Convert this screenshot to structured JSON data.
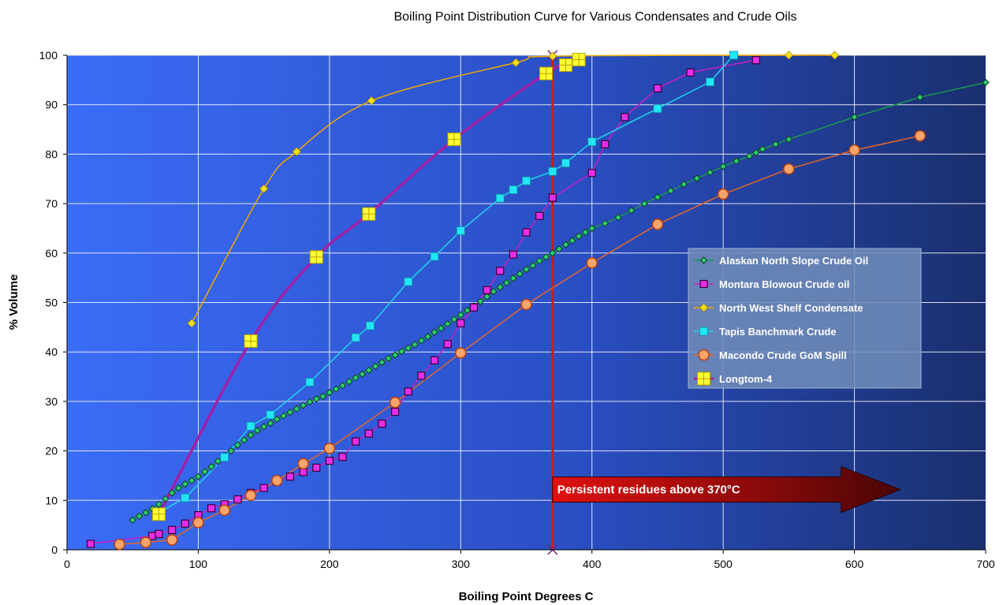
{
  "chart_data": {
    "type": "line",
    "title": "Boiling Point Distribution Curve for Various Condensates and Crude Oils",
    "xlabel": "Boiling Point Degrees C",
    "ylabel": "% Volume",
    "xlim": [
      0,
      700
    ],
    "ylim": [
      0,
      100
    ],
    "x_ticks": [
      0,
      100,
      200,
      300,
      400,
      500,
      600,
      700
    ],
    "y_ticks": [
      0,
      10,
      20,
      30,
      40,
      50,
      60,
      70,
      80,
      90,
      100
    ],
    "grid": true,
    "legend_position": "right-middle",
    "background_gradient": [
      "#3b6cf7",
      "#1a2f6e"
    ],
    "series": [
      {
        "name": "Alaskan North Slope Crude Oil",
        "color": "#1a9850",
        "marker": "diamond-green",
        "smooth": false,
        "points": [
          [
            50,
            6
          ],
          [
            55,
            6.8
          ],
          [
            60,
            7.5
          ],
          [
            65,
            8.3
          ],
          [
            70,
            9.2
          ],
          [
            75,
            10.3
          ],
          [
            80,
            11.5
          ],
          [
            85,
            12.5
          ],
          [
            90,
            13.3
          ],
          [
            95,
            14
          ],
          [
            100,
            14.8
          ],
          [
            105,
            15.8
          ],
          [
            110,
            16.8
          ],
          [
            115,
            17.9
          ],
          [
            120,
            19
          ],
          [
            125,
            20
          ],
          [
            130,
            21.2
          ],
          [
            135,
            22.2
          ],
          [
            140,
            23.2
          ],
          [
            145,
            24.1
          ],
          [
            150,
            24.9
          ],
          [
            155,
            25.6
          ],
          [
            160,
            26.4
          ],
          [
            165,
            27.1
          ],
          [
            170,
            27.8
          ],
          [
            175,
            28.5
          ],
          [
            180,
            29.2
          ],
          [
            185,
            29.9
          ],
          [
            190,
            30.5
          ],
          [
            195,
            31
          ],
          [
            200,
            31.8
          ],
          [
            205,
            32.5
          ],
          [
            210,
            33.2
          ],
          [
            215,
            34
          ],
          [
            220,
            34.8
          ],
          [
            225,
            35.5
          ],
          [
            230,
            36.3
          ],
          [
            235,
            37.1
          ],
          [
            240,
            37.9
          ],
          [
            245,
            38.7
          ],
          [
            250,
            39.4
          ],
          [
            255,
            40.1
          ],
          [
            260,
            40.8
          ],
          [
            265,
            41.5
          ],
          [
            270,
            42.3
          ],
          [
            275,
            43.1
          ],
          [
            280,
            44
          ],
          [
            285,
            44.8
          ],
          [
            290,
            45.7
          ],
          [
            295,
            46.6
          ],
          [
            300,
            47.5
          ],
          [
            305,
            48.4
          ],
          [
            310,
            49.3
          ],
          [
            315,
            50.2
          ],
          [
            320,
            51.2
          ],
          [
            325,
            52.2
          ],
          [
            330,
            53.1
          ],
          [
            335,
            54
          ],
          [
            340,
            54.9
          ],
          [
            345,
            55.8
          ],
          [
            350,
            56.7
          ],
          [
            355,
            57.5
          ],
          [
            360,
            58.4
          ],
          [
            365,
            59.2
          ],
          [
            370,
            60
          ],
          [
            375,
            60.8
          ],
          [
            380,
            61.7
          ],
          [
            385,
            62.5
          ],
          [
            390,
            63.4
          ],
          [
            395,
            64.2
          ],
          [
            400,
            65
          ],
          [
            410,
            66
          ],
          [
            420,
            67.2
          ],
          [
            430,
            68.6
          ],
          [
            440,
            70
          ],
          [
            450,
            71.3
          ],
          [
            460,
            72.6
          ],
          [
            470,
            73.9
          ],
          [
            480,
            75.1
          ],
          [
            490,
            76.3
          ],
          [
            500,
            77.5
          ],
          [
            510,
            78.6
          ],
          [
            520,
            79.6
          ],
          [
            525,
            80.3
          ],
          [
            530,
            81
          ],
          [
            540,
            82
          ],
          [
            550,
            83
          ],
          [
            600,
            87.5
          ],
          [
            650,
            91.5
          ],
          [
            700,
            94.5
          ]
        ]
      },
      {
        "name": "Montara Blowout Crude oil",
        "color": "#c81ec8",
        "marker": "square-magenta",
        "smooth": false,
        "points": [
          [
            18,
            1.2
          ],
          [
            65,
            2.8
          ],
          [
            70,
            3.2
          ],
          [
            80,
            4
          ],
          [
            90,
            5.3
          ],
          [
            100,
            7
          ],
          [
            110,
            8.4
          ],
          [
            120,
            9.2
          ],
          [
            130,
            10.2
          ],
          [
            140,
            11.5
          ],
          [
            150,
            12.5
          ],
          [
            160,
            13.8
          ],
          [
            170,
            14.8
          ],
          [
            180,
            15.7
          ],
          [
            190,
            16.6
          ],
          [
            200,
            18
          ],
          [
            210,
            18.8
          ],
          [
            220,
            21.9
          ],
          [
            230,
            23.5
          ],
          [
            240,
            25.5
          ],
          [
            250,
            27.9
          ],
          [
            260,
            32
          ],
          [
            270,
            35.2
          ],
          [
            280,
            38.3
          ],
          [
            290,
            41.6
          ],
          [
            300,
            45.8
          ],
          [
            310,
            49
          ],
          [
            320,
            52.5
          ],
          [
            330,
            56.4
          ],
          [
            340,
            59.7
          ],
          [
            350,
            64.2
          ],
          [
            360,
            67.5
          ],
          [
            370,
            71.2
          ],
          [
            400,
            76.2
          ],
          [
            410,
            82
          ],
          [
            425,
            87.5
          ],
          [
            450,
            93.3
          ],
          [
            475,
            96.5
          ],
          [
            525,
            99
          ]
        ]
      },
      {
        "name": "North West Shelf Condensate",
        "color": "#f2a900",
        "marker": "diamond-yellow",
        "smooth": true,
        "points": [
          [
            95,
            45.8
          ],
          [
            150,
            73
          ],
          [
            175,
            80.5
          ],
          [
            232,
            90.8
          ],
          [
            342,
            98.5
          ],
          [
            370,
            99.8
          ],
          [
            550,
            100
          ],
          [
            585,
            100
          ]
        ]
      },
      {
        "name": "Tapis Banchmark Crude",
        "color": "#22d3ee",
        "marker": "square-cyan",
        "smooth": false,
        "points": [
          [
            70,
            7.5
          ],
          [
            90,
            10.5
          ],
          [
            120,
            18.7
          ],
          [
            140,
            25
          ],
          [
            155,
            27.3
          ],
          [
            185,
            33.9
          ],
          [
            220,
            42.9
          ],
          [
            231,
            45.3
          ],
          [
            260,
            54.2
          ],
          [
            280,
            59.3
          ],
          [
            300,
            64.5
          ],
          [
            330,
            71.1
          ],
          [
            340,
            72.8
          ],
          [
            350,
            74.6
          ],
          [
            370,
            76.5
          ],
          [
            380,
            78.2
          ],
          [
            400,
            82.5
          ],
          [
            450,
            89.2
          ],
          [
            490,
            94.6
          ],
          [
            508,
            100
          ]
        ]
      },
      {
        "name": "Macondo Crude GoM Spill",
        "color": "#e6662b",
        "marker": "circle-orange",
        "smooth": false,
        "points": [
          [
            40,
            1.1
          ],
          [
            60,
            1.5
          ],
          [
            80,
            2
          ],
          [
            100,
            5.5
          ],
          [
            120,
            8
          ],
          [
            140,
            11
          ],
          [
            160,
            14
          ],
          [
            180,
            17.4
          ],
          [
            200,
            20.5
          ],
          [
            250,
            29.8
          ],
          [
            300,
            39.8
          ],
          [
            350,
            49.6
          ],
          [
            400,
            58
          ],
          [
            450,
            65.8
          ],
          [
            500,
            71.9
          ],
          [
            550,
            77
          ],
          [
            600,
            80.8
          ],
          [
            650,
            83.7
          ]
        ]
      },
      {
        "name": "Longtom-4",
        "color": "#a020a8",
        "marker": "square-yellow-cross",
        "smooth": true,
        "points": [
          [
            70,
            7.2
          ],
          [
            140,
            42.2
          ],
          [
            190,
            59.2
          ],
          [
            230,
            67.9
          ],
          [
            295,
            83
          ],
          [
            365,
            96.3
          ],
          [
            380,
            98
          ],
          [
            390,
            99.1
          ]
        ]
      }
    ],
    "reference_line": {
      "x": 370,
      "color": "#c81e1e"
    },
    "annotation": {
      "text": "Persistent  residues above 370°C",
      "x_start": 370,
      "x_end": 635,
      "y": 12.5
    }
  }
}
